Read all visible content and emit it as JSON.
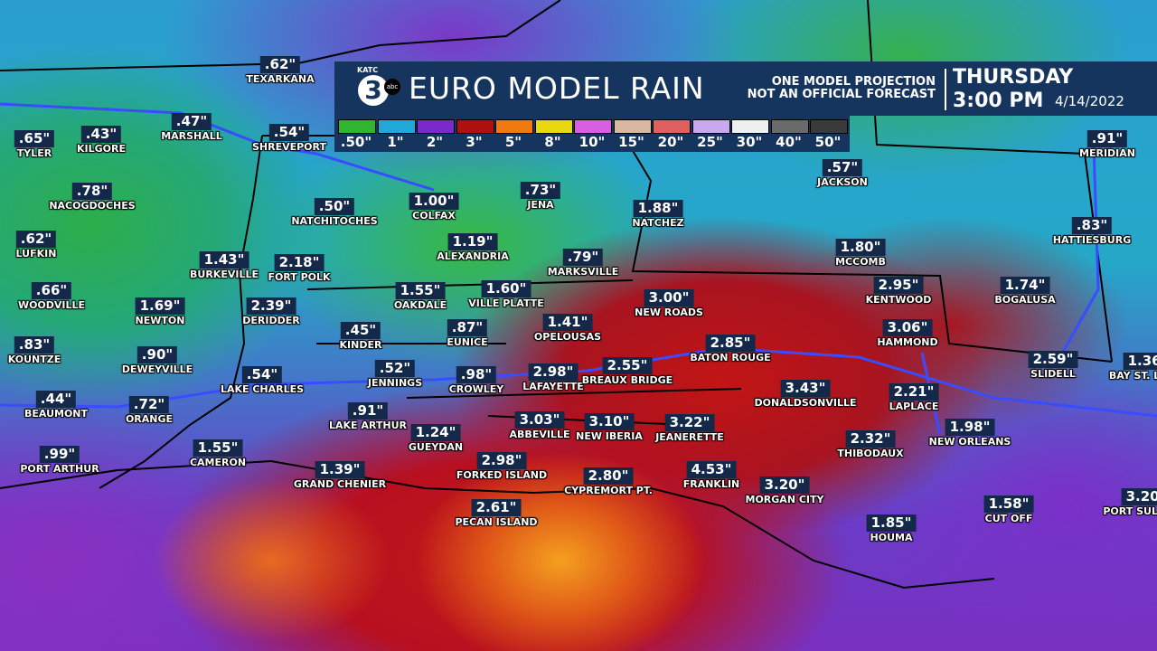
{
  "header": {
    "logo": {
      "station": "KATC",
      "channel": "3",
      "network": "abc"
    },
    "title": "EURO MODEL RAIN",
    "disclaimer": [
      "ONE MODEL PROJECTION",
      "NOT AN OFFICIAL FORECAST"
    ],
    "day": "THURSDAY",
    "time": "3:00 PM",
    "date": "4/14/2022"
  },
  "legend": [
    {
      "label": ".50\"",
      "color": "#2fb52f"
    },
    {
      "label": "1\"",
      "color": "#22a8d8"
    },
    {
      "label": "2\"",
      "color": "#7a2ac8"
    },
    {
      "label": "3\"",
      "color": "#b01010"
    },
    {
      "label": "5\"",
      "color": "#f07a10"
    },
    {
      "label": "8\"",
      "color": "#e8d810"
    },
    {
      "label": "10\"",
      "color": "#d860e0"
    },
    {
      "label": "15\"",
      "color": "#d8b8a0"
    },
    {
      "label": "20\"",
      "color": "#e06060"
    },
    {
      "label": "25\"",
      "color": "#c8a8f0"
    },
    {
      "label": "30\"",
      "color": "#f0f0f0"
    },
    {
      "label": "40\"",
      "color": "#6a6a6a"
    },
    {
      "label": "50\"",
      "color": "#3a3a3a"
    }
  ],
  "cities": [
    {
      "amount": ".62\"",
      "name": "TEXARKANA"
    },
    {
      "amount": ".65\"",
      "name": "TYLER"
    },
    {
      "amount": ".43\"",
      "name": "KILGORE"
    },
    {
      "amount": ".47\"",
      "name": "MARSHALL"
    },
    {
      "amount": ".54\"",
      "name": "SHREVEPORT"
    },
    {
      "amount": ".78\"",
      "name": "NACOGDOCHES"
    },
    {
      "amount": ".50\"",
      "name": "NATCHITOCHES"
    },
    {
      "amount": "1.00\"",
      "name": "COLFAX"
    },
    {
      "amount": ".73\"",
      "name": "JENA"
    },
    {
      "amount": "1.88\"",
      "name": "NATCHEZ"
    },
    {
      "amount": ".57\"",
      "name": "JACKSON"
    },
    {
      "amount": ".91\"",
      "name": "MERIDIAN"
    },
    {
      "amount": ".62\"",
      "name": "LUFKIN"
    },
    {
      "amount": "1.19\"",
      "name": "ALEXANDRIA"
    },
    {
      "amount": ".79\"",
      "name": "MARKSVILLE"
    },
    {
      "amount": "1.80\"",
      "name": "MCCOMB"
    },
    {
      "amount": ".83\"",
      "name": "HATTIESBURG"
    },
    {
      "amount": "1.43\"",
      "name": "BURKEVILLE"
    },
    {
      "amount": "2.18\"",
      "name": "FORT POLK"
    },
    {
      "amount": ".66\"",
      "name": "WOODVILLE"
    },
    {
      "amount": "1.55\"",
      "name": "OAKDALE"
    },
    {
      "amount": "1.60\"",
      "name": "VILLE PLATTE"
    },
    {
      "amount": "3.00\"",
      "name": "NEW ROADS"
    },
    {
      "amount": "2.95\"",
      "name": "KENTWOOD"
    },
    {
      "amount": "1.74\"",
      "name": "BOGALUSA"
    },
    {
      "amount": "1.69\"",
      "name": "NEWTON"
    },
    {
      "amount": "2.39\"",
      "name": "DERIDDER"
    },
    {
      "amount": ".45\"",
      "name": "KINDER"
    },
    {
      "amount": ".87\"",
      "name": "EUNICE"
    },
    {
      "amount": "1.41\"",
      "name": "OPELOUSAS"
    },
    {
      "amount": "3.06\"",
      "name": "HAMMOND"
    },
    {
      "amount": ".83\"",
      "name": "KOUNTZE"
    },
    {
      "amount": ".90\"",
      "name": "DEWEYVILLE"
    },
    {
      "amount": "2.85\"",
      "name": "BATON ROUGE"
    },
    {
      "amount": "2.59\"",
      "name": "SLIDELL"
    },
    {
      "amount": "1.36\"",
      "name": "BAY ST. LOUIS"
    },
    {
      "amount": ".54\"",
      "name": "LAKE CHARLES"
    },
    {
      "amount": ".52\"",
      "name": "JENNINGS"
    },
    {
      "amount": ".98\"",
      "name": "CROWLEY"
    },
    {
      "amount": "2.98\"",
      "name": "LAFAYETTE"
    },
    {
      "amount": "2.55\"",
      "name": "BREAUX BRIDGE"
    },
    {
      "amount": "3.43\"",
      "name": "DONALDSONVILLE"
    },
    {
      "amount": "2.21\"",
      "name": "LAPLACE"
    },
    {
      "amount": ".44\"",
      "name": "BEAUMONT"
    },
    {
      "amount": ".72\"",
      "name": "ORANGE"
    },
    {
      "amount": ".91\"",
      "name": "LAKE ARTHUR"
    },
    {
      "amount": "1.98\"",
      "name": "NEW ORLEANS"
    },
    {
      "amount": "3.03\"",
      "name": "ABBEVILLE"
    },
    {
      "amount": "3.10\"",
      "name": "NEW IBERIA"
    },
    {
      "amount": "3.22\"",
      "name": "JEANERETTE"
    },
    {
      "amount": "1.24\"",
      "name": "GUEYDAN"
    },
    {
      "amount": "2.32\"",
      "name": "THIBODAUX"
    },
    {
      "amount": ".99\"",
      "name": "PORT ARTHUR"
    },
    {
      "amount": "1.55\"",
      "name": "CAMERON"
    },
    {
      "amount": "2.98\"",
      "name": "FORKED ISLAND"
    },
    {
      "amount": "1.39\"",
      "name": "GRAND CHENIER"
    },
    {
      "amount": "2.80\"",
      "name": "CYPREMORT PT."
    },
    {
      "amount": "4.53\"",
      "name": "FRANKLIN"
    },
    {
      "amount": "3.20\"",
      "name": "MORGAN CITY"
    },
    {
      "amount": "2.61\"",
      "name": "PECAN ISLAND"
    },
    {
      "amount": "1.58\"",
      "name": "CUT OFF"
    },
    {
      "amount": "3.20\"",
      "name": "PORT SULPHUR"
    },
    {
      "amount": "1.85\"",
      "name": "HOUMA"
    }
  ]
}
